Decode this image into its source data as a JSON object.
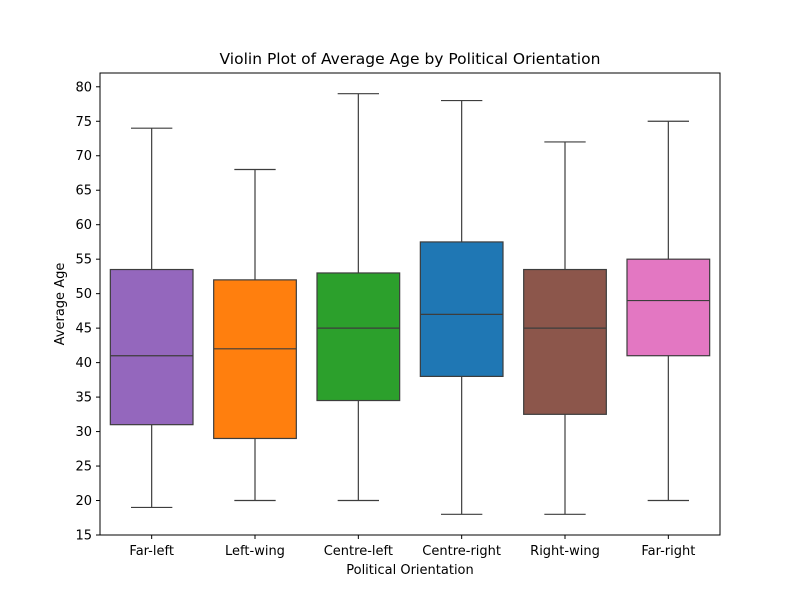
{
  "chart_data": {
    "type": "box",
    "title": "Violin Plot of Average Age by Political Orientation",
    "xlabel": "Political Orientation",
    "ylabel": "Average Age",
    "ylim": [
      15,
      82
    ],
    "yticks": [
      15,
      20,
      25,
      30,
      35,
      40,
      45,
      50,
      55,
      60,
      65,
      70,
      75,
      80
    ],
    "grid": false,
    "categories": [
      "Far-left",
      "Left-wing",
      "Centre-left",
      "Centre-right",
      "Right-wing",
      "Far-right"
    ],
    "boxes": [
      {
        "category": "Far-left",
        "whisker_low": 19,
        "q1": 31,
        "median": 41,
        "q3": 53.5,
        "whisker_high": 74,
        "color": "#9467bd"
      },
      {
        "category": "Left-wing",
        "whisker_low": 20,
        "q1": 29,
        "median": 42,
        "q3": 52,
        "whisker_high": 68,
        "color": "#ff7f0e"
      },
      {
        "category": "Centre-left",
        "whisker_low": 20,
        "q1": 34.5,
        "median": 45,
        "q3": 53,
        "whisker_high": 79,
        "color": "#2ca02c"
      },
      {
        "category": "Centre-right",
        "whisker_low": 18,
        "q1": 38,
        "median": 47,
        "q3": 57.5,
        "whisker_high": 78,
        "color": "#1f77b4"
      },
      {
        "category": "Right-wing",
        "whisker_low": 18,
        "q1": 32.5,
        "median": 45,
        "q3": 53.5,
        "whisker_high": 72,
        "color": "#8c564b"
      },
      {
        "category": "Far-right",
        "whisker_low": 20,
        "q1": 41,
        "median": 49,
        "q3": 55,
        "whisker_high": 75,
        "color": "#e377c2"
      }
    ]
  }
}
